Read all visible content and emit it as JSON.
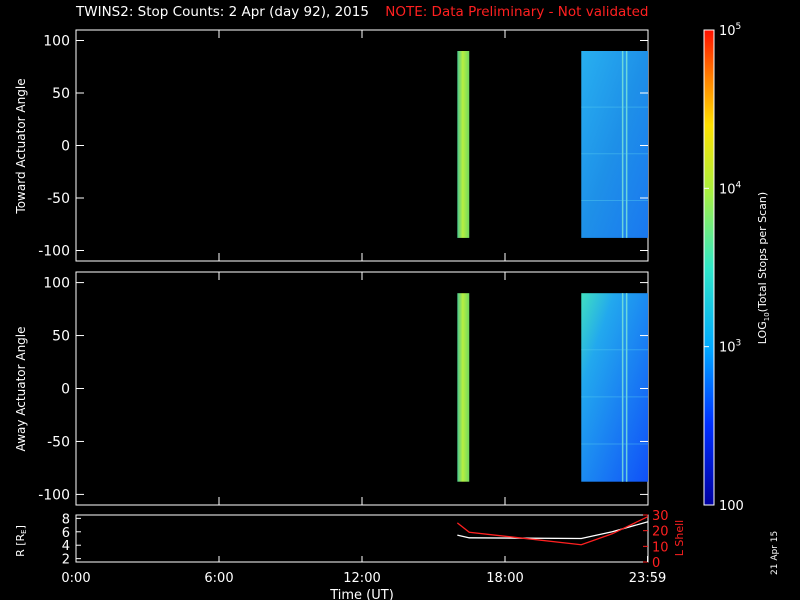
{
  "header": {
    "title": "TWINS2: Stop Counts:  2 Apr (day  92), 2015",
    "note": "NOTE: Data Preliminary - Not validated",
    "note_color": "#ff2020"
  },
  "date_stamp": "21 Apr 15",
  "chart_data": [
    {
      "type": "heatmap",
      "ylabel": "Toward Actuator Angle",
      "ylim": [
        -110,
        110
      ],
      "yticks": [
        "100",
        "50",
        "0",
        "-50",
        "-100"
      ],
      "ytick_values": [
        100,
        50,
        0,
        -50,
        -100
      ],
      "xlim_hours": [
        0,
        24
      ],
      "angle_range": [
        -88,
        90
      ],
      "data_blocks": [
        {
          "start_hour": 16.0,
          "end_hour": 16.5,
          "log_counts_approx": 3.6,
          "color": "#7adc50"
        },
        {
          "start_hour": 21.2,
          "end_hour": 24.0,
          "log_counts_approx": 2.8,
          "color": "#1e9ae6"
        }
      ]
    },
    {
      "type": "heatmap",
      "ylabel": "Away Actuator Angle",
      "ylim": [
        -110,
        110
      ],
      "yticks": [
        "100",
        "50",
        "0",
        "-50",
        "-100"
      ],
      "ytick_values": [
        100,
        50,
        0,
        -50,
        -100
      ],
      "xlim_hours": [
        0,
        24
      ],
      "angle_range": [
        -88,
        90
      ],
      "data_blocks": [
        {
          "start_hour": 16.0,
          "end_hour": 16.5,
          "log_counts_approx": 3.6,
          "color": "#7adc50"
        },
        {
          "start_hour": 21.2,
          "end_hour": 24.0,
          "log_counts_approx": 2.7,
          "color": "#1e7ef0"
        }
      ]
    },
    {
      "type": "line",
      "ylabel_left": "R [RE]",
      "ylabel_right": "L Shell",
      "xlabel": "Time (UT)",
      "xticks": [
        "0:00",
        "6:00",
        "12:00",
        "18:00",
        "23:59"
      ],
      "xtick_hours": [
        0,
        6,
        12,
        18,
        23.98
      ],
      "left_ticks": [
        "8",
        "6",
        "4",
        "2"
      ],
      "left_range": [
        1.5,
        8.5
      ],
      "right_ticks": [
        "30",
        "20",
        "10",
        "0"
      ],
      "right_range": [
        0,
        30
      ],
      "series": [
        {
          "name": "R [RE]",
          "color": "#ffffff",
          "axis": "left",
          "x": [
            16.0,
            16.5,
            21.2,
            22.5,
            24.0
          ],
          "y": [
            5.5,
            5.1,
            5.0,
            6.0,
            7.5
          ]
        },
        {
          "name": "L Shell",
          "color": "#ff2020",
          "axis": "right",
          "x": [
            16.0,
            16.5,
            21.2,
            22.5,
            24.0
          ],
          "y": [
            25,
            19,
            11,
            18,
            29
          ]
        }
      ]
    },
    {
      "type": "colorbar",
      "ylabel": "LOG10(Total Stops per Scan)",
      "tick_labels": [
        "100",
        "10^3",
        "10^4",
        "10^5"
      ],
      "range_log": [
        2,
        5
      ]
    }
  ]
}
